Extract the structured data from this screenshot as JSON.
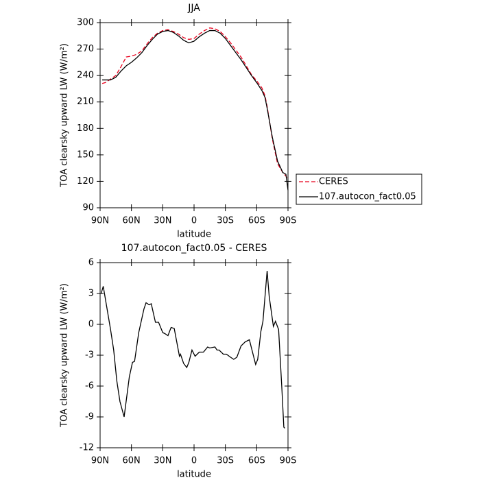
{
  "chart_data": [
    {
      "type": "line",
      "title": "JJA",
      "xlabel": "latitude",
      "ylabel": "TOA clearsky upward LW (W/m²)",
      "x": [
        88,
        85,
        80,
        75,
        70,
        65,
        60,
        55,
        50,
        45,
        40,
        35,
        30,
        25,
        20,
        15,
        10,
        5,
        0,
        -5,
        -10,
        -15,
        -20,
        -25,
        -30,
        -35,
        -40,
        -45,
        -50,
        -55,
        -60,
        -65,
        -68,
        -70,
        -75,
        -80,
        -85,
        -88,
        -90
      ],
      "series": [
        {
          "name": "CERES",
          "color": "#e8001c",
          "line_style": "dashed",
          "values": [
            231,
            232,
            236,
            240,
            250,
            261,
            262,
            264,
            268,
            276,
            283,
            288,
            291,
            292,
            290,
            287,
            283,
            281,
            282,
            287,
            291,
            294,
            293,
            290,
            284,
            277,
            269,
            261,
            251,
            241,
            234,
            226,
            217,
            205,
            168,
            140,
            130,
            126,
            122
          ]
        },
        {
          "name": "107.autocon_fact0.05",
          "color": "#000000",
          "line_style": "solid",
          "values": [
            235,
            235,
            235,
            238,
            245,
            251,
            255,
            260,
            266,
            274,
            281,
            287,
            290,
            291,
            289,
            285,
            280,
            277,
            279,
            284,
            288,
            291,
            291,
            288,
            282,
            274,
            266,
            258,
            249,
            240,
            232,
            223,
            215,
            203,
            170,
            143,
            130,
            128,
            110
          ]
        }
      ],
      "xlim": [
        90,
        -90
      ],
      "xticks": [
        {
          "value": 90,
          "label": "90N"
        },
        {
          "value": 60,
          "label": "60N"
        },
        {
          "value": 30,
          "label": "30N"
        },
        0,
        {
          "value": -30,
          "label": "30S"
        },
        {
          "value": -60,
          "label": "60S"
        },
        {
          "value": -90,
          "label": "90S"
        }
      ],
      "ylim": [
        90,
        300
      ],
      "yticks": [
        90,
        120,
        150,
        180,
        210,
        240,
        270,
        300
      ],
      "legend": "right"
    },
    {
      "type": "line",
      "title": "107.autocon_fact0.05 - CERES",
      "xlabel": "latitude",
      "ylabel": "TOA clearsky upward LW (W/m²)",
      "x": [
        89,
        87,
        84,
        80,
        77,
        74,
        71,
        67,
        62,
        59,
        57,
        53,
        48,
        46,
        43,
        41,
        37,
        34,
        30,
        28,
        25,
        22,
        19,
        14,
        13,
        10,
        7,
        5,
        2,
        -1,
        -5,
        -9,
        -13,
        -15,
        -20,
        -22,
        -24,
        -28,
        -31,
        -35,
        -38,
        -41,
        -45,
        -49,
        -53,
        -59,
        -61,
        -64,
        -66,
        -70,
        -72,
        -76,
        -78,
        -81,
        -84,
        -86,
        -87
      ],
      "series": [
        {
          "name": "107.autocon_fact0.05 - CERES",
          "color": "#000000",
          "line_style": "solid",
          "values": [
            3.0,
            3.7,
            1.9,
            -0.5,
            -2.5,
            -5.5,
            -7.5,
            -9.0,
            -5.1,
            -3.7,
            -3.6,
            -0.8,
            1.5,
            2.1,
            1.9,
            2.0,
            0.2,
            0.2,
            -0.8,
            -0.9,
            -1.1,
            -0.3,
            -0.4,
            -3.1,
            -2.9,
            -3.8,
            -4.2,
            -3.7,
            -2.5,
            -3.1,
            -2.7,
            -2.7,
            -2.2,
            -2.3,
            -2.2,
            -2.5,
            -2.5,
            -2.9,
            -2.9,
            -3.2,
            -3.4,
            -3.2,
            -2.1,
            -1.7,
            -1.5,
            -3.9,
            -3.4,
            -0.7,
            0.3,
            5.2,
            2.7,
            -0.2,
            0.3,
            -0.5,
            -6.0,
            -10.0,
            -10.1
          ]
        }
      ],
      "xlim": [
        90,
        -90
      ],
      "xticks": [
        {
          "value": 90,
          "label": "90N"
        },
        {
          "value": 60,
          "label": "60N"
        },
        {
          "value": 30,
          "label": "30N"
        },
        0,
        {
          "value": -30,
          "label": "30S"
        },
        {
          "value": -60,
          "label": "60S"
        },
        {
          "value": -90,
          "label": "90S"
        }
      ],
      "ylim": [
        -12,
        6
      ],
      "yticks": [
        -12,
        -9,
        -6,
        -3,
        0,
        3,
        6
      ]
    }
  ]
}
